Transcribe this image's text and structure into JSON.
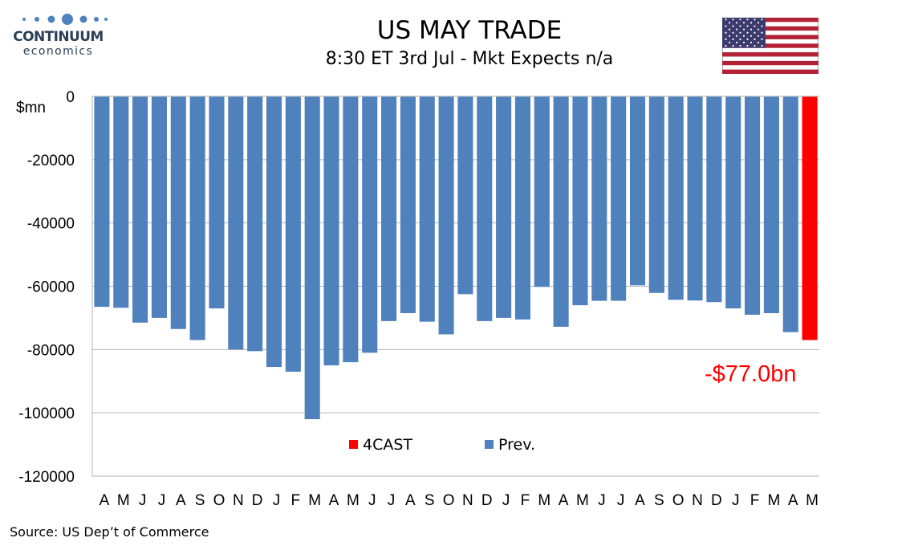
{
  "header": {
    "brand_line1": "CONTINUUM",
    "brand_line2": "economics",
    "title": "US MAY TRADE",
    "subtitle": "8:30 ET 3rd Jul - Mkt Expects n/a",
    "flag_icon": "us-flag-icon"
  },
  "source": "Source: US Dep’t of Commerce",
  "colors": {
    "prev": "#4f81bd",
    "forecast": "#ff0000",
    "brand": "#2b3f56"
  },
  "chart_data": {
    "type": "bar",
    "ylabel": "$mn",
    "ylim": [
      -120000,
      0
    ],
    "yticks": [
      0,
      -20000,
      -40000,
      -60000,
      -80000,
      -100000,
      -120000
    ],
    "grid": "horizontal",
    "legend_position": "bottom-center",
    "categories": [
      "A",
      "M",
      "J",
      "J",
      "A",
      "S",
      "O",
      "N",
      "D",
      "J",
      "F",
      "M",
      "A",
      "M",
      "J",
      "J",
      "A",
      "S",
      "O",
      "N",
      "D",
      "J",
      "F",
      "M",
      "A",
      "M",
      "J",
      "J",
      "A",
      "S",
      "O",
      "N",
      "D",
      "J",
      "F",
      "M",
      "A",
      "M"
    ],
    "series": [
      {
        "name": "Prev.",
        "color": "#4f81bd",
        "values": [
          -66500,
          -66800,
          -71500,
          -70000,
          -73500,
          -77000,
          -67000,
          -80000,
          -80500,
          -85500,
          -87000,
          -102000,
          -85000,
          -84000,
          -81000,
          -71000,
          -68500,
          -71200,
          -75200,
          -62500,
          -71000,
          -70000,
          -70500,
          -60200,
          -72800,
          -66000,
          -64600,
          -64600,
          -59700,
          -62100,
          -64300,
          -64500,
          -65000,
          -67000,
          -69000,
          -68500,
          -74500,
          null
        ]
      },
      {
        "name": "4CAST",
        "color": "#ff0000",
        "values": [
          null,
          null,
          null,
          null,
          null,
          null,
          null,
          null,
          null,
          null,
          null,
          null,
          null,
          null,
          null,
          null,
          null,
          null,
          null,
          null,
          null,
          null,
          null,
          null,
          null,
          null,
          null,
          null,
          null,
          null,
          null,
          null,
          null,
          null,
          null,
          null,
          null,
          -77000
        ]
      }
    ],
    "annotations": [
      {
        "text": "-$77.0bn",
        "color": "#ff0000"
      }
    ]
  }
}
